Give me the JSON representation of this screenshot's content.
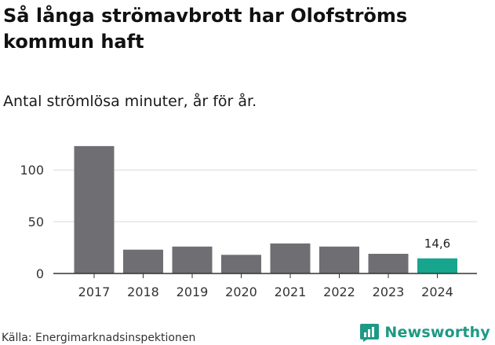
{
  "title": "Så långa strömavbrott har Olofströms kommun haft",
  "subtitle": "Antal strömlösa minuter, år för år.",
  "source": "Källa: Energimarknadsinspektionen",
  "brand": {
    "name": "Newsworthy",
    "icon": "newsworthy-logo-icon",
    "color": "#1d9a85"
  },
  "chart_data": {
    "type": "bar",
    "title": "Så långa strömavbrott har Olofströms kommun haft",
    "subtitle": "Antal strömlösa minuter, år för år.",
    "xlabel": "",
    "ylabel": "",
    "categories": [
      "2017",
      "2018",
      "2019",
      "2020",
      "2021",
      "2022",
      "2023",
      "2024"
    ],
    "values": [
      123,
      23,
      26,
      18,
      29,
      26,
      19,
      14.6
    ],
    "highlight_index": 7,
    "annotations": [
      {
        "category": "2024",
        "text": "14,6"
      }
    ],
    "yticks": [
      0,
      50,
      100
    ],
    "ylim": [
      0,
      125
    ],
    "grid": true,
    "colors": {
      "bar": "#6f6e73",
      "highlight": "#17a58d",
      "grid": "#d9d9d9",
      "axis": "#333333"
    }
  }
}
